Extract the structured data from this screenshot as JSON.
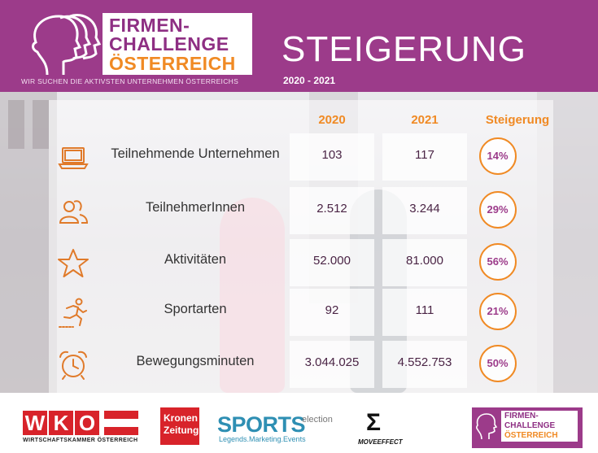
{
  "header": {
    "logo_lines": [
      "FIRMEN-",
      "CHALLENGE",
      "ÖSTERREICH"
    ],
    "tagline": "WIR SUCHEN DIE AKTIVSTEN UNTERNEHMEN ÖSTERREICHS",
    "title": "STEIGERUNG",
    "years": "2020 - 2021"
  },
  "table": {
    "columns": [
      "2020",
      "2021",
      "Steigerung"
    ],
    "rows": [
      {
        "icon": "laptop-icon",
        "label": "Teilnehmende Unternehmen",
        "v2020": "103",
        "v2021": "117",
        "increase": "14%"
      },
      {
        "icon": "people-icon",
        "label": "TeilnehmerInnen",
        "v2020": "2.512",
        "v2021": "3.244",
        "increase": "29%"
      },
      {
        "icon": "star-icon",
        "label": "Aktivitäten",
        "v2020": "52.000",
        "v2021": "81.000",
        "increase": "56%"
      },
      {
        "icon": "runner-icon",
        "label": "Sportarten",
        "v2020": "92",
        "v2021": "111",
        "increase": "21%"
      },
      {
        "icon": "alarm-clock-icon",
        "label": "Bewegungsminuten",
        "v2020": "3.044.025",
        "v2021": "4.552.753",
        "increase": "50%"
      }
    ]
  },
  "footer": {
    "wko_letters": [
      "W",
      "K",
      "O"
    ],
    "wko_sub": "WIRTSCHAFTSKAMMER ÖSTERREICH",
    "krone_lines": [
      "Kronen",
      "Zeitung"
    ],
    "sports_main": "SPORTS",
    "sports_sel": "election",
    "sports_sub": "Legends.Marketing.Events",
    "move_text": "MOVEEFFECT",
    "fc_lines": [
      "FIRMEN-",
      "CHALLENGE",
      "ÖSTERREICH"
    ]
  },
  "colors": {
    "brand_purple": "#9c3b8a",
    "accent_orange": "#f08a24"
  }
}
